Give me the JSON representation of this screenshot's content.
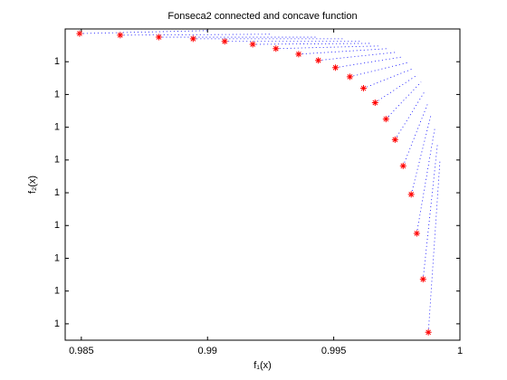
{
  "chart_data": {
    "type": "scatter",
    "title": "Fonseca2 connected and concave function",
    "xlabel": "f₁(x)",
    "ylabel": "f₂(x)",
    "xlim": [
      0.98436,
      1.0
    ],
    "xticks": [
      0.985,
      0.99,
      0.995,
      1
    ],
    "ylim": [
      0.999905,
      1.0
    ],
    "yticks": [
      {
        "value": 0.99991,
        "label": "1"
      },
      {
        "value": 0.99992,
        "label": "1"
      },
      {
        "value": 0.99993,
        "label": "1"
      },
      {
        "value": 0.99994,
        "label": "1"
      },
      {
        "value": 0.99995,
        "label": "1"
      },
      {
        "value": 0.99996,
        "label": "1"
      },
      {
        "value": 0.99997,
        "label": "1"
      },
      {
        "value": 0.99998,
        "label": "1"
      },
      {
        "value": 0.99999,
        "label": "1"
      }
    ],
    "series": [
      {
        "color": "#ff0000",
        "marker": "*",
        "x": [
          0.98493,
          0.98654,
          0.98807,
          0.98943,
          0.99068,
          0.99179,
          0.99271,
          0.99361,
          0.99439,
          0.99507,
          0.99564,
          0.99618,
          0.99664,
          0.99707,
          0.99743,
          0.99775,
          0.99807,
          0.99829,
          0.99854,
          0.99875
        ],
        "values": [
          0.9999986,
          0.9999981,
          0.9999975,
          0.999997,
          0.9999962,
          0.9999953,
          0.999994,
          0.9999923,
          0.9999904,
          0.9999882,
          0.9999854,
          0.9999819,
          0.9999775,
          0.9999725,
          0.9999662,
          0.9999582,
          0.9999495,
          0.9999376,
          0.9999236,
          0.9999074
        ],
        "ray_color": "#0000ff",
        "ray_end_x": [
          0.99,
          0.9925,
          0.99429,
          0.99536,
          0.99607,
          0.99643,
          0.99679,
          0.99714,
          0.9975,
          0.99775,
          0.99796,
          0.99814,
          0.99832,
          0.99846,
          0.99861,
          0.99875,
          0.99886,
          0.999,
          0.99911,
          0.99921
        ],
        "ray_end_y": [
          0.9999995,
          0.9999984,
          0.9999975,
          0.999997,
          0.9999962,
          0.9999956,
          0.9999948,
          0.999994,
          0.9999929,
          0.9999915,
          0.9999898,
          0.9999879,
          0.999986,
          0.9999838,
          0.999981,
          0.9999777,
          0.9999739,
          0.9999695,
          0.9999648,
          0.9999599
        ]
      }
    ]
  }
}
